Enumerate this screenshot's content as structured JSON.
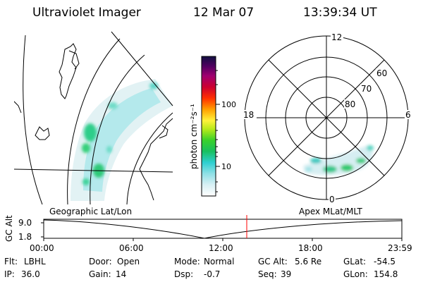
{
  "header": {
    "title": "Ultraviolet Imager",
    "date": "12 Mar 07",
    "time": "13:39:34 UT"
  },
  "colorbar": {
    "unit_label": "photon cm⁻²s⁻¹",
    "ticks": [
      "100",
      "10"
    ]
  },
  "polar": {
    "mlt_labels": {
      "top": "12",
      "left": "18",
      "right": "6",
      "bottom": "0"
    },
    "lat_labels": [
      "60",
      "70",
      "80"
    ]
  },
  "projections": {
    "left": "Geographic Lat/Lon",
    "right": "Apex MLat/MLT"
  },
  "altitude_plot": {
    "ylabel": "GC Alt",
    "yticks": [
      "9.0",
      "1.8"
    ],
    "xticks": [
      "00:00",
      "06:00",
      "12:00",
      "18:00",
      "23:59"
    ],
    "marker_color": "#ff0000"
  },
  "status": {
    "row1": [
      {
        "label": "Flt:",
        "value": "LBHL"
      },
      {
        "label": "Door:",
        "value": "Open"
      },
      {
        "label": "Mode:",
        "value": "Normal"
      },
      {
        "label": "GC Alt:",
        "value": "5.6 Re"
      },
      {
        "label": "GLat:",
        "value": "-54.5"
      }
    ],
    "row2": [
      {
        "label": "IP:",
        "value": "36.0"
      },
      {
        "label": "Gain:",
        "value": "14"
      },
      {
        "label": "Dsp:",
        "value": "-0.7"
      },
      {
        "label": "Seq:",
        "value": "39"
      },
      {
        "label": "GLon:",
        "value": "154.8"
      }
    ]
  }
}
